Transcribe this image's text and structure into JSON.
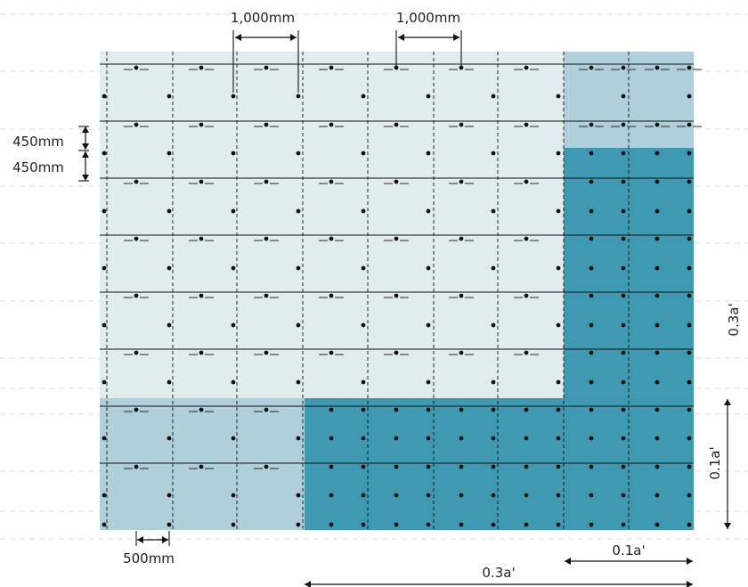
{
  "labels": {
    "top_spacing_1": "1,000mm",
    "top_spacing_2": "1,000mm",
    "left_spacing_1": "450mm",
    "left_spacing_2": "450mm",
    "bottom_spacing": "500mm",
    "bottom_extent_short": "0.1a'",
    "bottom_extent_long": "0.3a'",
    "right_extent_long": "0.3a'",
    "right_extent_short": "0.1a'"
  },
  "colors": {
    "background": "#ffffff",
    "zone_light": "#e1ecef",
    "zone_medium": "#afcfda",
    "zone_dark": "#3f9ab1",
    "line": "#111111",
    "guide": "#cfcfcf"
  }
}
